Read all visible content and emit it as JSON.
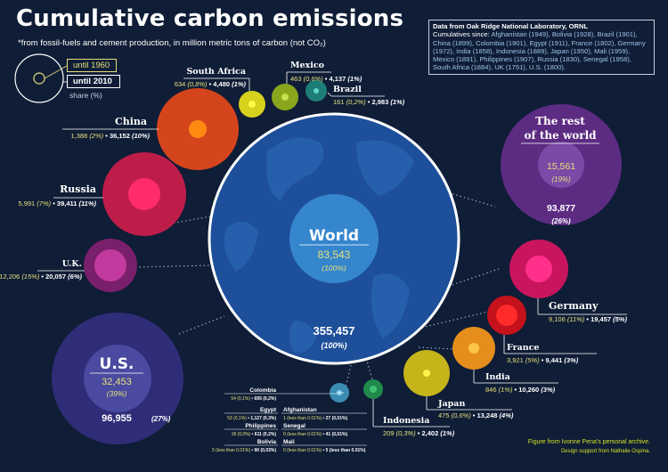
{
  "title": "Cumulative carbon emissions",
  "subtitle": "*from fossil-fuels and cement production, in million metric tons of carbon (not CO₂)",
  "legend": {
    "early": "until 1960",
    "late": "until 2010",
    "share": "share (%)"
  },
  "source": {
    "heading": "Data from Oak Ridge National Laboratory, ORNL",
    "since_label": "Cumulatives since:",
    "since_list": "Afghanistan (1949), Bolivia (1928), Brazil (1901), China (1899), Colombia (1901), Egypt (1911), France (1802), Germany (1972), India (1858), Indonesia (1889), Japan (1950), Mali (1959), Mexico (1891), Philippines (1907), Russia (1830), Senegal (1958), South Africa (1884), UK (1751), U.S. (1800)."
  },
  "credit": {
    "line1": "Figure from Ivonne Pena's personal archive.",
    "line2": "Design support from Nathalie Ospina."
  },
  "colors": {
    "background": "#0f1d36",
    "early_label": "#e6e07c",
    "late_label": "#ffffff",
    "source_list": "#9ec3e6",
    "credit": "#d8e02a"
  },
  "chart_data": {
    "type": "bubble",
    "title": "Cumulative carbon emissions",
    "unit": "million metric tons of carbon",
    "series": [
      {
        "name": "until 1960"
      },
      {
        "name": "until 2010"
      }
    ],
    "entities": [
      {
        "name": "World",
        "until_1960": 83543,
        "until_1960_share": "100%",
        "until_2010": 355457,
        "until_2010_share": "100%",
        "color": "#1b6fc2"
      },
      {
        "name": "The rest of the world",
        "until_1960": 15561,
        "until_1960_share": "19%",
        "until_2010": 93877,
        "until_2010_share": "26%",
        "color": "#5c2b82"
      },
      {
        "name": "U.S.",
        "until_1960": 32453,
        "until_1960_share": "39%",
        "until_2010": 96955,
        "until_2010_share": "27%",
        "color": "#2f2d78"
      },
      {
        "name": "China",
        "until_1960": 1388,
        "until_1960_share": "2%",
        "until_2010": 36152,
        "until_2010_share": "10%",
        "color": "#d5451d"
      },
      {
        "name": "Russia",
        "until_1960": 5991,
        "until_1960_share": "7%",
        "until_2010": 39411,
        "until_2010_share": "11%",
        "color": "#be1d4a"
      },
      {
        "name": "U.K.",
        "until_1960": 12206,
        "until_1960_share": "15%",
        "until_2010": 20057,
        "until_2010_share": "6%",
        "color": "#7a1f6c"
      },
      {
        "name": "Germany",
        "until_1960": 9106,
        "until_1960_share": "11%",
        "until_2010": 19457,
        "until_2010_share": "5%",
        "color": "#c8155e"
      },
      {
        "name": "France",
        "until_1960": 3921,
        "until_1960_share": "5%",
        "until_2010": 9441,
        "until_2010_share": "3%",
        "color": "#c5121c"
      },
      {
        "name": "India",
        "until_1960": 846,
        "until_1960_share": "1%",
        "until_2010": 10260,
        "until_2010_share": "3%",
        "color": "#e58e1c"
      },
      {
        "name": "Japan",
        "until_1960": 475,
        "until_1960_share": "0,6%",
        "until_2010": 13248,
        "until_2010_share": "4%",
        "color": "#c5b51a"
      },
      {
        "name": "Indonesia",
        "until_1960": 209,
        "until_1960_share": "0,3%",
        "until_2010": 2402,
        "until_2010_share": "1%",
        "color": "#1f8a4c"
      },
      {
        "name": "South Africa",
        "until_1960": 634,
        "until_1960_share": "0,8%",
        "until_2010": 4480,
        "until_2010_share": "1%",
        "color": "#d6d11c"
      },
      {
        "name": "Mexico",
        "until_1960": 463,
        "until_1960_share": "0,6%",
        "until_2010": 4137,
        "until_2010_share": "1%",
        "color": "#8aa61c"
      },
      {
        "name": "Brazil",
        "until_1960": 161,
        "until_1960_share": "0,2%",
        "until_2010": 2983,
        "until_2010_share": "1%",
        "color": "#1c7e76"
      },
      {
        "name": "Colombia",
        "until_1960": 54,
        "until_1960_share": "0,1%",
        "until_2010": 695,
        "until_2010_share": "0,2%",
        "color": "#3b8cb2"
      },
      {
        "name": "Egypt",
        "until_1960": 53,
        "until_1960_share": "0,1%",
        "until_2010": 1127,
        "until_2010_share": "0,3%"
      },
      {
        "name": "Philippines",
        "until_1960": 18,
        "until_1960_share": "0,0%",
        "until_2010": 611,
        "until_2010_share": "0,2%"
      },
      {
        "name": "Bolivia",
        "until_1960": 3,
        "until_1960_share": "less than 0.01%",
        "until_2010": 90,
        "until_2010_share": "0,03%"
      },
      {
        "name": "Afghanistan",
        "until_1960": 1,
        "until_1960_share": "less than 0.01%",
        "until_2010": 27,
        "until_2010_share": "0,01%"
      },
      {
        "name": "Senegal",
        "until_1960": 0,
        "until_1960_share": "less than 0.01%",
        "until_2010": 41,
        "until_2010_share": "0,01%"
      },
      {
        "name": "Mali",
        "until_1960": 0,
        "until_1960_share": "less than 0.01%",
        "until_2010": 5,
        "until_2010_share": "less than 0.01%"
      }
    ]
  }
}
